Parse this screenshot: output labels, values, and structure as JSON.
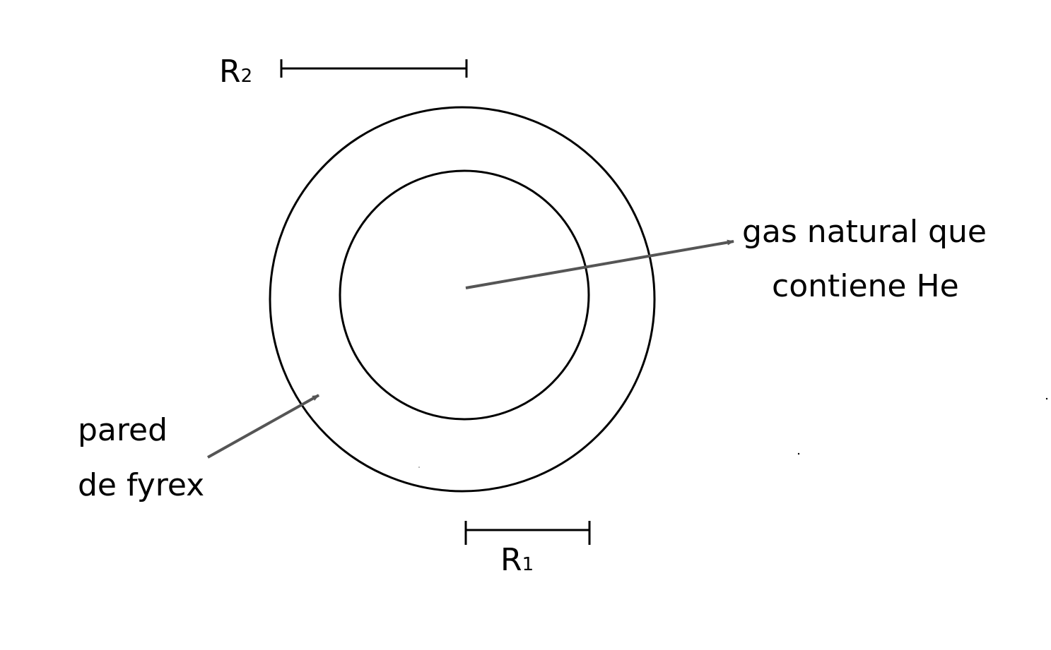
{
  "labels": {
    "r2_main": "R",
    "r2_sub": "2",
    "r1_main": "R",
    "r1_sub": "1",
    "gas_line1": "gas natural que",
    "gas_line2": "contiene He",
    "wall_line1": "pared",
    "wall_line2": "de fyrex"
  },
  "colors": {
    "stroke": "#000000",
    "arrow": "#555555",
    "background": "#ffffff"
  }
}
